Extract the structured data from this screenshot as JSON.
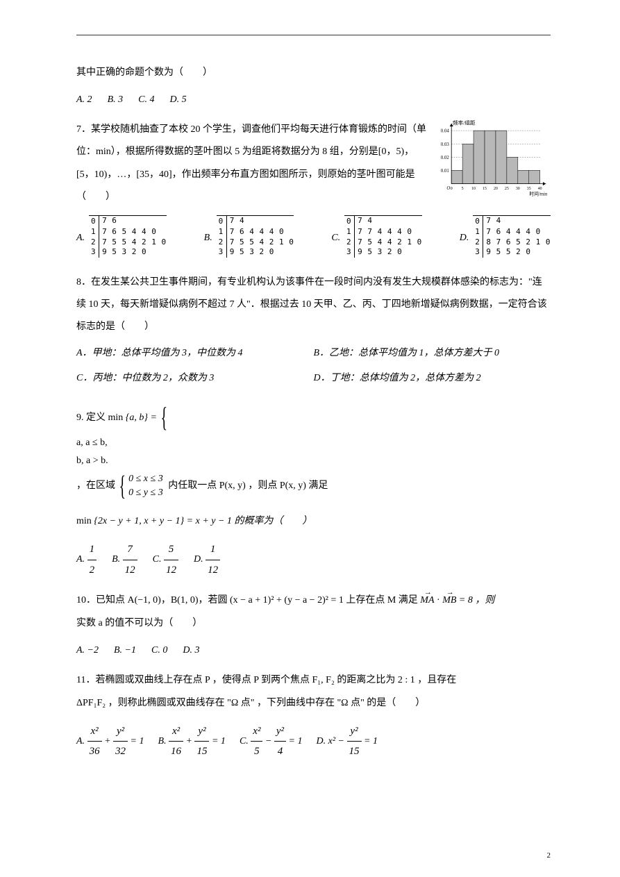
{
  "page_number": "2",
  "top_fragment": "其中正确的命题个数为（　　）",
  "q6_options": [
    "A. 2",
    "B. 3",
    "C. 4",
    "D. 5"
  ],
  "q7": {
    "lead": "7．某学校随机抽查了本校 20 个学生，调查他们平均每天进行体育锻炼的时间（单位：min），根据所得数据的茎叶图以 5 为组距将数据分为 8 组，分别是[0，5)，[5，10)，…，[35，40]，作出频率分布直方图如图所示，则原始的茎叶图可能是（　　）",
    "histogram": {
      "ylabel": "频率/组距",
      "xlabel": "时间/min",
      "yticks": [
        "0.01",
        "0.02",
        "0.03",
        "0.04"
      ],
      "xticks": [
        "0",
        "5",
        "10",
        "15",
        "20",
        "25",
        "30",
        "35",
        "40"
      ],
      "bar_heights": [
        0.01,
        0.03,
        0.04,
        0.04,
        0.04,
        0.02,
        0.01,
        0.01
      ],
      "bar_color": "#b8b8b8",
      "axis_color": "#000000",
      "dash_color": "#666666",
      "background": "#ffffff"
    },
    "options": [
      "A.",
      "B.",
      "C.",
      "D."
    ],
    "stems": {
      "A": [
        [
          "0",
          "7 6"
        ],
        [
          "1",
          "7 6 5 4 4 0"
        ],
        [
          "2",
          "7 5 5 4 2 1 0"
        ],
        [
          "3",
          "9 5 3 2 0"
        ]
      ],
      "B": [
        [
          "0",
          "7 4"
        ],
        [
          "1",
          "7 6 4 4 4 0"
        ],
        [
          "2",
          "7 5 5 4 2 1 0"
        ],
        [
          "3",
          "9 5 3 2 0"
        ]
      ],
      "C": [
        [
          "0",
          "7 4"
        ],
        [
          "1",
          "7 7 4 4 4 0"
        ],
        [
          "2",
          "7 5 4 4 2 1 0"
        ],
        [
          "3",
          "9 5 3 2 0"
        ]
      ],
      "D": [
        [
          "0",
          "7 4"
        ],
        [
          "1",
          "7 6 4 4 4 0"
        ],
        [
          "2",
          "8 7 6 5 2 1 0"
        ],
        [
          "3",
          "9 5 5 2 0"
        ]
      ]
    }
  },
  "q8": {
    "lead": "8．在发生某公共卫生事件期间，有专业机构认为该事件在一段时间内没有发生大规模群体感染的标志为：\"连续 10 天，每天新增疑似病例不超过 7 人\"．根据过去 10 天甲、乙、丙、丁四地新增疑似病例数据，一定符合该标志的是（　　）",
    "A": "A．甲地：总体平均值为 3，中位数为 4",
    "B": "B．乙地：总体平均值为 1，总体方差大于 0",
    "C": "C．丙地：中位数为 2，众数为 3",
    "D": "D．丁地：总体均值为 2，总体方差为 2"
  },
  "q9": {
    "lead": "9. 定义 min",
    "set1": "a, b",
    "case1a": "a, a ≤ b,",
    "case1b": "b, a > b.",
    "mid": " ，在区域 ",
    "case2a": "0 ≤ x ≤ 3",
    "case2b": "0 ≤ y ≤ 3",
    "tail": " 内任取一点 P(x, y) ，则点 P(x, y) 满足",
    "line2_pre": "min",
    "line2_set": "2x − y + 1, x + y − 1",
    "line2_eq": " = x + y − 1 的概率为（　　）",
    "options_fracs": [
      {
        "label": "A.",
        "n": "1",
        "d": "2"
      },
      {
        "label": "B.",
        "n": "7",
        "d": "12"
      },
      {
        "label": "C.",
        "n": "5",
        "d": "12"
      },
      {
        "label": "D.",
        "n": "1",
        "d": "12"
      }
    ]
  },
  "q10": {
    "lead": "10．已知点 A(−1, 0)，B(1, 0)，若圆 (x − a + 1)² + (y − a − 2)² = 1 上存在点 M 满足 ",
    "vec1": "MA",
    "dot": " · ",
    "vec2": "MB",
    "eq": " = 8 ，则",
    "line2": "实数 a 的值不可以为（　　）",
    "options": [
      "A. −2",
      "B. −1",
      "C. 0",
      "D. 3"
    ]
  },
  "q11": {
    "lead": "11．若椭圆或双曲线上存在点 P ，使得点 P 到两个焦点 F₁, F₂ 的距离之比为 2 : 1 ，且存在",
    "line2": "ΔPF₁F₂ ，则称此椭圆或双曲线存在 \"Ω 点\" ，下列曲线中存在 \"Ω 点\" 的是（　　）",
    "options": [
      {
        "label": "A.",
        "xn": "x²",
        "xd": "36",
        "yn": "y²",
        "yd": "32",
        "sign": "+"
      },
      {
        "label": "B.",
        "xn": "x²",
        "xd": "16",
        "yn": "y²",
        "yd": "15",
        "sign": "+"
      },
      {
        "label": "C.",
        "xn": "x²",
        "xd": "5",
        "yn": "y²",
        "yd": "4",
        "sign": "−"
      },
      {
        "label": "D.",
        "xn_raw": "x²",
        "yn": "y²",
        "yd": "15",
        "sign": "−"
      }
    ]
  }
}
